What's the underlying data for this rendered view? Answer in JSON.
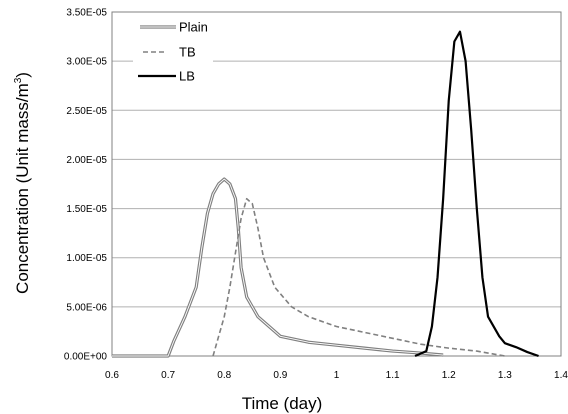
{
  "chart_data": {
    "type": "line",
    "title": "",
    "xlabel": "Time (day)",
    "ylabel_text": "Concentration (Unit mass/m",
    "ylabel_sup": "3",
    "ylabel_close": ")",
    "xlim": [
      0.6,
      1.4
    ],
    "ylim": [
      0,
      3.5e-05
    ],
    "x_ticks": [
      0.6,
      0.7,
      0.8,
      0.9,
      1.0,
      1.1,
      1.2,
      1.3,
      1.4
    ],
    "x_tick_labels": [
      "0.6",
      "0.7",
      "0.8",
      "0.9",
      "1",
      "1.1",
      "1.2",
      "1.3",
      "1.4"
    ],
    "y_ticks": [
      0,
      5e-06,
      1e-05,
      1.5e-05,
      2e-05,
      2.5e-05,
      3e-05,
      3.5e-05
    ],
    "y_tick_labels": [
      "0.00E+00",
      "5.00E-06",
      "1.00E-05",
      "1.50E-05",
      "2.00E-05",
      "2.50E-05",
      "3.00E-05",
      "3.50E-05"
    ],
    "grid": "horizontal",
    "legend_position": "top-left",
    "series": [
      {
        "name": "Plain",
        "style": "double",
        "color": "#808080",
        "points": [
          [
            0.6,
            0
          ],
          [
            0.7,
            0
          ],
          [
            0.71,
            1.5e-06
          ],
          [
            0.73,
            4e-06
          ],
          [
            0.75,
            7e-06
          ],
          [
            0.76,
            1.1e-05
          ],
          [
            0.77,
            1.45e-05
          ],
          [
            0.78,
            1.65e-05
          ],
          [
            0.79,
            1.75e-05
          ],
          [
            0.8,
            1.8e-05
          ],
          [
            0.81,
            1.75e-05
          ],
          [
            0.82,
            1.6e-05
          ],
          [
            0.825,
            1.3e-05
          ],
          [
            0.83,
            9e-06
          ],
          [
            0.84,
            6e-06
          ],
          [
            0.86,
            4e-06
          ],
          [
            0.88,
            3e-06
          ],
          [
            0.9,
            2e-06
          ],
          [
            0.95,
            1.4e-06
          ],
          [
            1.0,
            1.1e-06
          ],
          [
            1.05,
            8e-07
          ],
          [
            1.1,
            5e-07
          ],
          [
            1.15,
            3e-07
          ],
          [
            1.19,
            1e-07
          ]
        ]
      },
      {
        "name": "TB",
        "style": "dashed",
        "color": "#808080",
        "points": [
          [
            0.78,
            0
          ],
          [
            0.79,
            2e-06
          ],
          [
            0.8,
            4e-06
          ],
          [
            0.81,
            7e-06
          ],
          [
            0.82,
            1.05e-05
          ],
          [
            0.83,
            1.4e-05
          ],
          [
            0.84,
            1.6e-05
          ],
          [
            0.85,
            1.55e-05
          ],
          [
            0.86,
            1.3e-05
          ],
          [
            0.87,
            1e-05
          ],
          [
            0.89,
            7e-06
          ],
          [
            0.92,
            5e-06
          ],
          [
            0.95,
            4e-06
          ],
          [
            1.0,
            3e-06
          ],
          [
            1.05,
            2.4e-06
          ],
          [
            1.1,
            1.8e-06
          ],
          [
            1.15,
            1.2e-06
          ],
          [
            1.2,
            8e-07
          ],
          [
            1.25,
            5e-07
          ],
          [
            1.28,
            2e-07
          ],
          [
            1.3,
            0
          ]
        ]
      },
      {
        "name": "LB",
        "style": "solid",
        "color": "#000000",
        "points": [
          [
            1.14,
            0
          ],
          [
            1.16,
            5e-07
          ],
          [
            1.17,
            3e-06
          ],
          [
            1.18,
            8e-06
          ],
          [
            1.19,
            1.6e-05
          ],
          [
            1.2,
            2.6e-05
          ],
          [
            1.21,
            3.2e-05
          ],
          [
            1.22,
            3.3e-05
          ],
          [
            1.23,
            3e-05
          ],
          [
            1.24,
            2.3e-05
          ],
          [
            1.25,
            1.5e-05
          ],
          [
            1.26,
            8e-06
          ],
          [
            1.27,
            4e-06
          ],
          [
            1.29,
            2e-06
          ],
          [
            1.3,
            1.3e-06
          ],
          [
            1.32,
            9e-07
          ],
          [
            1.34,
            4e-07
          ],
          [
            1.36,
            0
          ]
        ]
      }
    ]
  }
}
